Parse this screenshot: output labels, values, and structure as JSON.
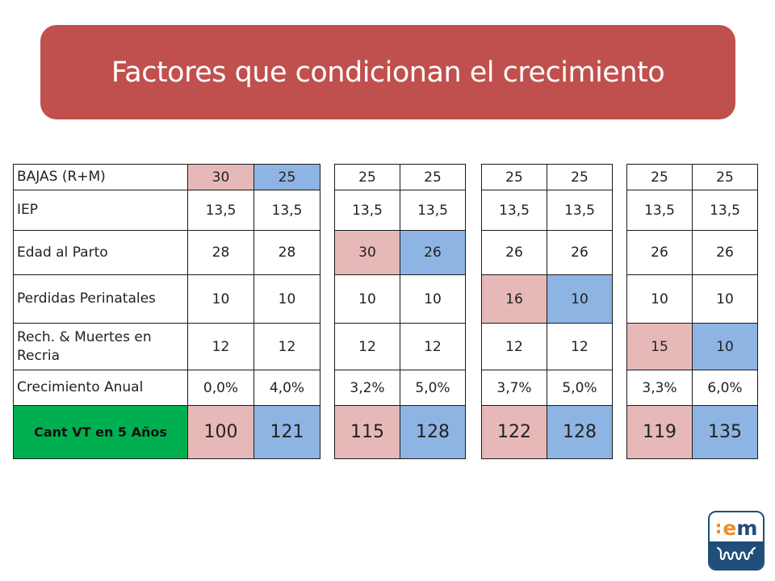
{
  "title": "Factores que condicionan el crecimiento",
  "row_labels": [
    "BAJAS (R+M)",
    "IEP",
    "Edad al Parto",
    "Perdidas Perinatales",
    "Rech. & Muertes en Recria",
    "Crecimiento Anual",
    "Cant VT en 5 Años"
  ],
  "tables": [
    {
      "cols": [
        [
          "30",
          "13,5",
          "28",
          "10",
          "12",
          "0,0%",
          "100"
        ],
        [
          "25",
          "13,5",
          "28",
          "10",
          "12",
          "4,0%",
          "121"
        ]
      ]
    },
    {
      "cols": [
        [
          "25",
          "13,5",
          "30",
          "10",
          "12",
          "3,2%",
          "115"
        ],
        [
          "25",
          "13,5",
          "26",
          "10",
          "12",
          "5,0%",
          "128"
        ]
      ]
    },
    {
      "cols": [
        [
          "25",
          "13,5",
          "26",
          "16",
          "12",
          "3,7%",
          "122"
        ],
        [
          "25",
          "13,5",
          "26",
          "10",
          "12",
          "5,0%",
          "128"
        ]
      ]
    },
    {
      "cols": [
        [
          "25",
          "13,5",
          "26",
          "10",
          "15",
          "3,3%",
          "119"
        ],
        [
          "25",
          "13,5",
          "26",
          "10",
          "10",
          "6,0%",
          "135"
        ]
      ]
    }
  ],
  "colors": {
    "banner": "#c0504d",
    "highlight_red": "#e6b9b8",
    "highlight_blue": "#8eb4e3",
    "label_green": "#00b050",
    "logo_blue": "#1f4e79",
    "logo_orange": "#f28c28"
  },
  "logo": {
    "colon": ":",
    "e": "e",
    "m": "m",
    "icon": "cow-udder-logo"
  }
}
